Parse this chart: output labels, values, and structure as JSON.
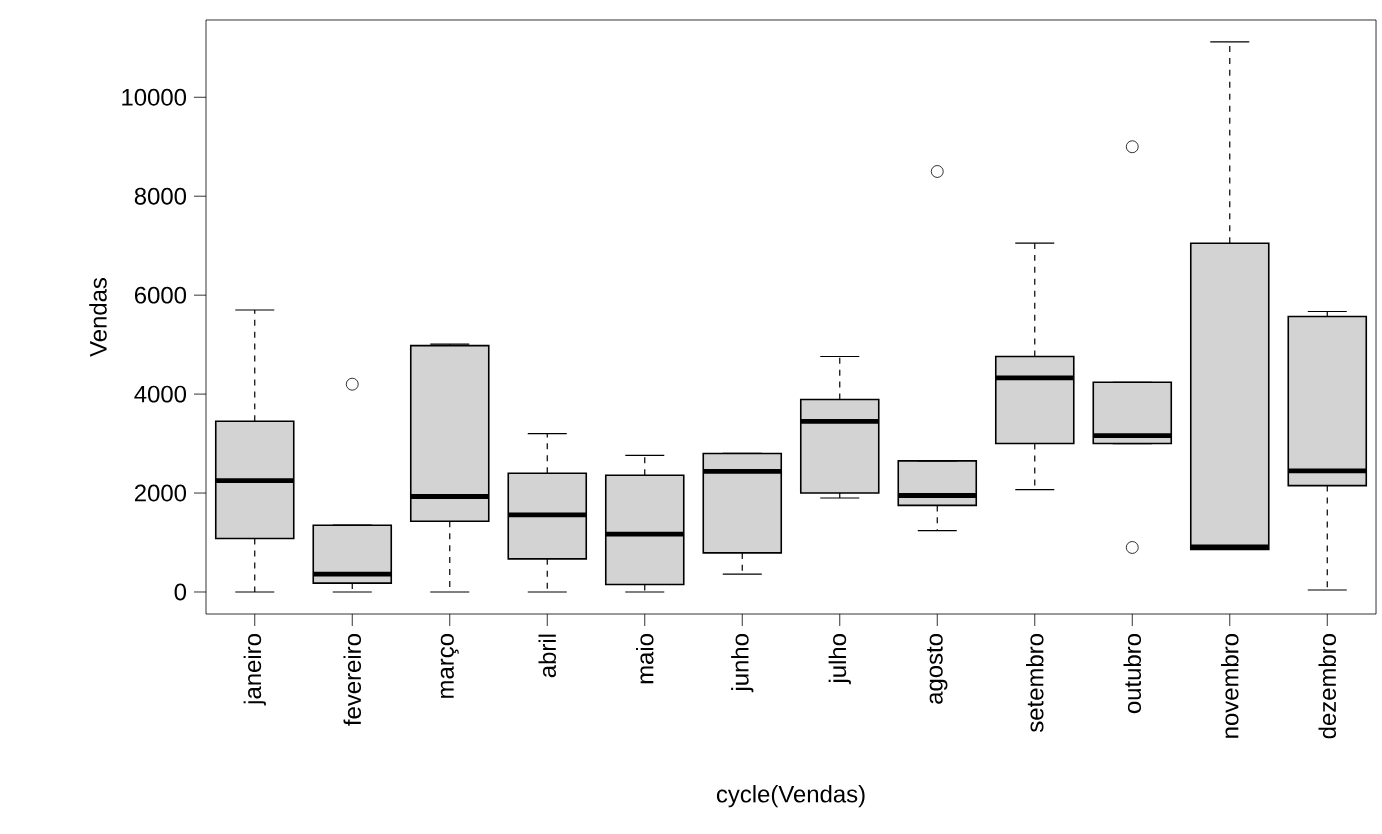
{
  "chart_data": {
    "type": "box",
    "xlabel": "cycle(Vendas)",
    "ylabel": "Vendas",
    "categories": [
      "janeiro",
      "fevereiro",
      "março",
      "abril",
      "maio",
      "junho",
      "julho",
      "agosto",
      "setembro",
      "outubro",
      "novembro",
      "dezembro"
    ],
    "ylim": [
      -445,
      11562
    ],
    "yticks": [
      0,
      2000,
      4000,
      6000,
      8000,
      10000
    ],
    "series": [
      {
        "color": "#d3d3d3",
        "boxes": [
          {
            "low": 0,
            "q1": 1080,
            "median": 2250,
            "q3": 3450,
            "high": 5700
          },
          {
            "low": 0,
            "q1": 180,
            "median": 360,
            "q3": 1350,
            "high": 1350,
            "outliers": [
              4200
            ]
          },
          {
            "low": 0,
            "q1": 1430,
            "median": 1930,
            "q3": 4980,
            "high": 5010
          },
          {
            "low": 0,
            "q1": 670,
            "median": 1560,
            "q3": 2400,
            "high": 3200
          },
          {
            "low": 0,
            "q1": 150,
            "median": 1170,
            "q3": 2360,
            "high": 2760
          },
          {
            "low": 360,
            "q1": 790,
            "median": 2440,
            "q3": 2800,
            "high": 2800
          },
          {
            "low": 1900,
            "q1": 2000,
            "median": 3450,
            "q3": 3890,
            "high": 4760
          },
          {
            "low": 1240,
            "q1": 1750,
            "median": 1950,
            "q3": 2650,
            "high": 2650,
            "outliers": [
              8500
            ]
          },
          {
            "low": 2070,
            "q1": 3000,
            "median": 4330,
            "q3": 4760,
            "high": 7050
          },
          {
            "low": 3000,
            "q1": 3000,
            "median": 3160,
            "q3": 4240,
            "high": 4240,
            "outliers": [
              9000,
              900
            ]
          },
          {
            "low": 860,
            "q1": 860,
            "median": 910,
            "q3": 7050,
            "high": 11120
          },
          {
            "low": 40,
            "q1": 2150,
            "median": 2450,
            "q3": 5570,
            "high": 5670
          }
        ]
      }
    ]
  }
}
